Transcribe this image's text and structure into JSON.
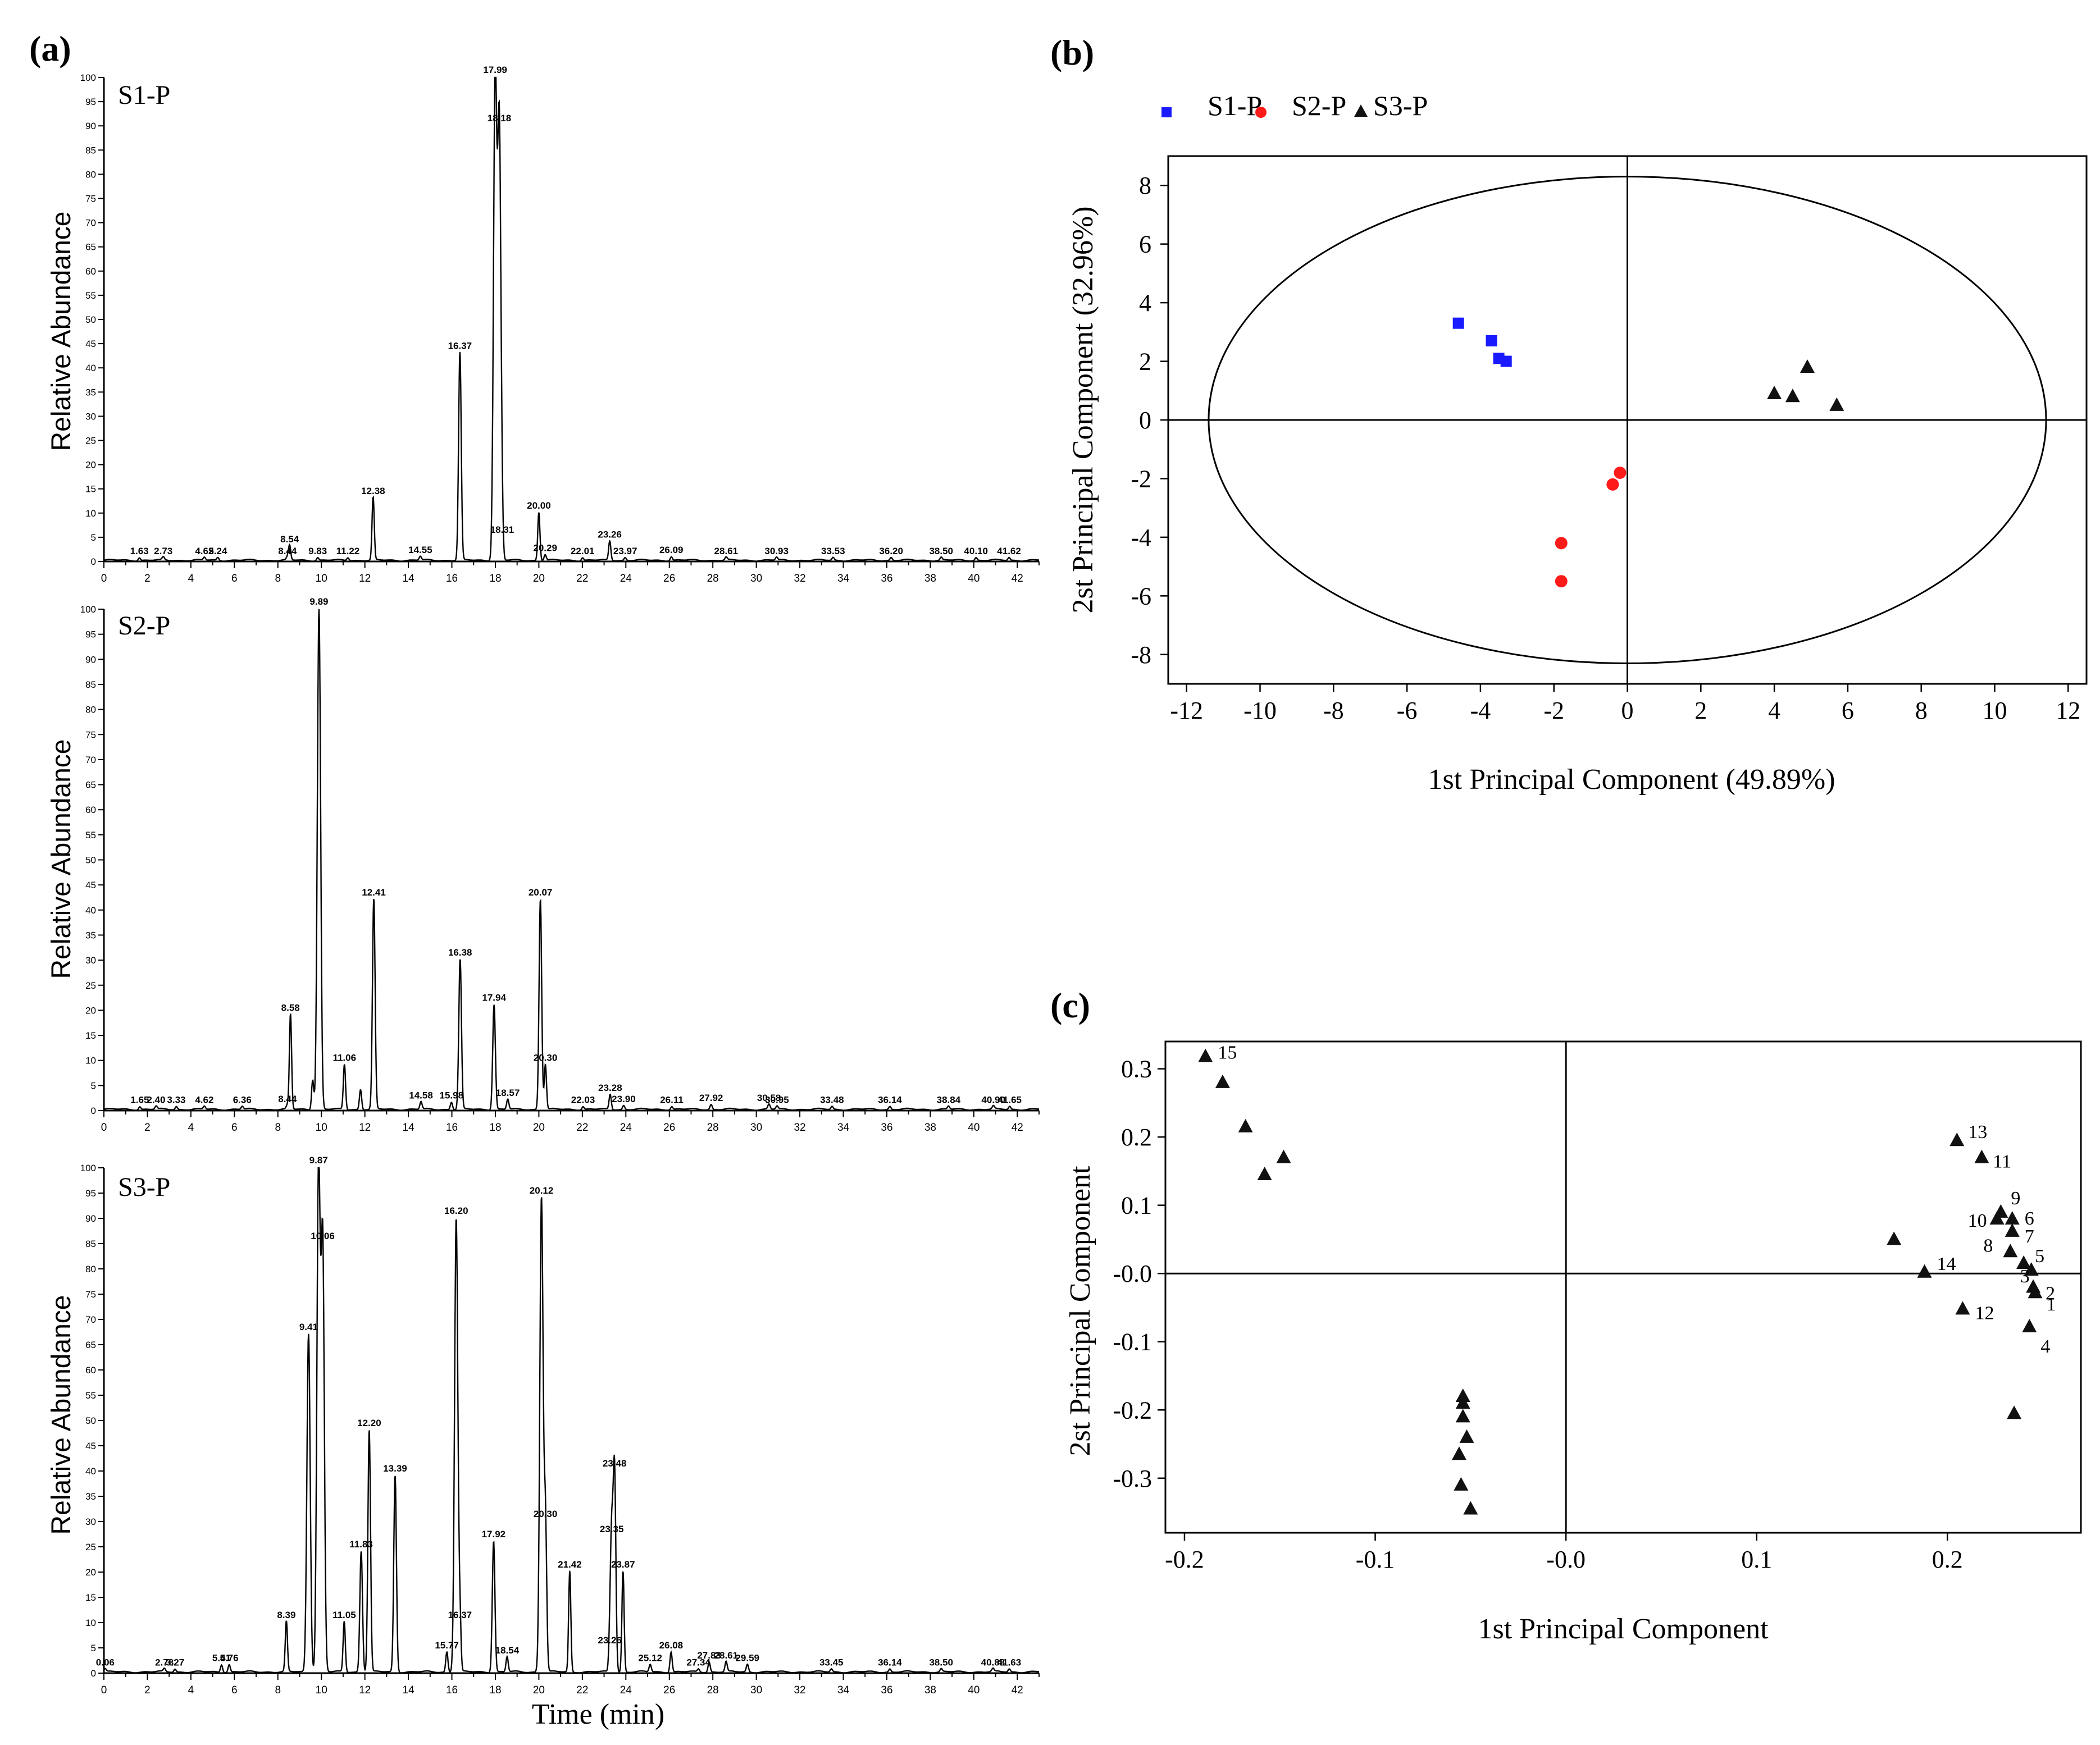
{
  "figure": {
    "panel_labels": [
      "(a)",
      "(b)",
      "(c)"
    ]
  },
  "chart_data": [
    {
      "id": "S1",
      "type": "line",
      "name": "S1-P",
      "ylabel": "Relative Abundance",
      "xlabel": "",
      "xlim": [
        0,
        43
      ],
      "ylim": [
        0,
        100
      ],
      "xticks": [
        0,
        2,
        4,
        6,
        8,
        10,
        12,
        14,
        16,
        18,
        20,
        22,
        24,
        26,
        28,
        30,
        32,
        34,
        36,
        38,
        40,
        42
      ],
      "yticks": [
        0,
        5,
        10,
        15,
        20,
        25,
        30,
        35,
        40,
        45,
        50,
        55,
        60,
        65,
        70,
        75,
        80,
        85,
        90,
        95,
        100
      ],
      "peaks": [
        {
          "rt": 1.63,
          "h": 0.6,
          "label": "1.63"
        },
        {
          "rt": 2.73,
          "h": 0.6,
          "label": "2.73"
        },
        {
          "rt": 4.62,
          "h": 0.6,
          "label": "4.62"
        },
        {
          "rt": 5.24,
          "h": 0.6,
          "label": "5.24"
        },
        {
          "rt": 8.44,
          "h": 0.6,
          "label": "8.44"
        },
        {
          "rt": 8.54,
          "h": 3,
          "label": "8.54"
        },
        {
          "rt": 9.83,
          "h": 0.6,
          "label": "9.83"
        },
        {
          "rt": 11.22,
          "h": 0.6,
          "label": "11.22"
        },
        {
          "rt": 12.38,
          "h": 13,
          "label": "12.38"
        },
        {
          "rt": 14.55,
          "h": 0.8,
          "label": "14.55"
        },
        {
          "rt": 16.37,
          "h": 43,
          "label": "16.37"
        },
        {
          "rt": 17.99,
          "h": 100,
          "label": "17.99"
        },
        {
          "rt": 18.18,
          "h": 90,
          "label": "18.18"
        },
        {
          "rt": 18.31,
          "h": 5,
          "label": "18.31"
        },
        {
          "rt": 20.0,
          "h": 10,
          "label": "20.00"
        },
        {
          "rt": 20.29,
          "h": 1.2,
          "label": "20.29"
        },
        {
          "rt": 22.01,
          "h": 0.6,
          "label": "22.01"
        },
        {
          "rt": 23.26,
          "h": 4,
          "label": "23.26"
        },
        {
          "rt": 23.97,
          "h": 0.6,
          "label": "23.97"
        },
        {
          "rt": 26.09,
          "h": 0.8,
          "label": "26.09"
        },
        {
          "rt": 28.61,
          "h": 0.6,
          "label": "28.61"
        },
        {
          "rt": 30.93,
          "h": 0.6,
          "label": "30.93"
        },
        {
          "rt": 33.53,
          "h": 0.6,
          "label": "33.53"
        },
        {
          "rt": 36.2,
          "h": 0.6,
          "label": "36.20"
        },
        {
          "rt": 38.5,
          "h": 0.6,
          "label": "38.50"
        },
        {
          "rt": 40.1,
          "h": 0.6,
          "label": "40.10"
        },
        {
          "rt": 41.62,
          "h": 0.6,
          "label": "41.62"
        }
      ]
    },
    {
      "id": "S2",
      "type": "line",
      "name": "S2-P",
      "ylabel": "Relative Abundance",
      "xlabel": "",
      "xlim": [
        0,
        43
      ],
      "ylim": [
        0,
        100
      ],
      "xticks": [
        0,
        2,
        4,
        6,
        8,
        10,
        12,
        14,
        16,
        18,
        20,
        22,
        24,
        26,
        28,
        30,
        32,
        34,
        36,
        38,
        40,
        42
      ],
      "yticks": [
        0,
        5,
        10,
        15,
        20,
        25,
        30,
        35,
        40,
        45,
        50,
        55,
        60,
        65,
        70,
        75,
        80,
        85,
        90,
        95,
        100
      ],
      "peaks": [
        {
          "rt": 1.65,
          "h": 0.6,
          "label": "1.65"
        },
        {
          "rt": 2.4,
          "h": 0.6,
          "label": "2.40"
        },
        {
          "rt": 3.33,
          "h": 0.6,
          "label": "3.33"
        },
        {
          "rt": 4.62,
          "h": 0.6,
          "label": "4.62"
        },
        {
          "rt": 6.36,
          "h": 0.6,
          "label": "6.36"
        },
        {
          "rt": 8.44,
          "h": 0.8,
          "label": "8.44"
        },
        {
          "rt": 8.58,
          "h": 19,
          "label": "8.58"
        },
        {
          "rt": 9.6,
          "h": 6,
          "label": ""
        },
        {
          "rt": 9.89,
          "h": 100,
          "label": "9.89"
        },
        {
          "rt": 11.06,
          "h": 9,
          "label": "11.06"
        },
        {
          "rt": 11.8,
          "h": 4,
          "label": ""
        },
        {
          "rt": 12.41,
          "h": 42,
          "label": "12.41"
        },
        {
          "rt": 14.58,
          "h": 1.5,
          "label": "14.58"
        },
        {
          "rt": 15.98,
          "h": 1.5,
          "label": "15.98"
        },
        {
          "rt": 16.38,
          "h": 30,
          "label": "16.38"
        },
        {
          "rt": 17.94,
          "h": 21,
          "label": "17.94"
        },
        {
          "rt": 18.57,
          "h": 2,
          "label": "18.57"
        },
        {
          "rt": 20.07,
          "h": 42,
          "label": "20.07"
        },
        {
          "rt": 20.3,
          "h": 9,
          "label": "20.30"
        },
        {
          "rt": 22.03,
          "h": 0.6,
          "label": "22.03"
        },
        {
          "rt": 23.28,
          "h": 3,
          "label": "23.28"
        },
        {
          "rt": 23.9,
          "h": 0.8,
          "label": "23.90"
        },
        {
          "rt": 26.11,
          "h": 0.6,
          "label": "26.11"
        },
        {
          "rt": 27.92,
          "h": 1,
          "label": "27.92"
        },
        {
          "rt": 30.58,
          "h": 1,
          "label": "30.58"
        },
        {
          "rt": 30.95,
          "h": 0.6,
          "label": "30.95"
        },
        {
          "rt": 33.48,
          "h": 0.6,
          "label": "33.48"
        },
        {
          "rt": 36.14,
          "h": 0.6,
          "label": "36.14"
        },
        {
          "rt": 38.84,
          "h": 0.6,
          "label": "38.84"
        },
        {
          "rt": 40.9,
          "h": 0.6,
          "label": "40.90"
        },
        {
          "rt": 41.65,
          "h": 0.6,
          "label": "41.65"
        }
      ]
    },
    {
      "id": "S3",
      "type": "line",
      "name": "S3-P",
      "ylabel": "Relative Abundance",
      "xlabel": "Time (min)",
      "xlim": [
        0,
        43
      ],
      "ylim": [
        0,
        100
      ],
      "xticks": [
        0,
        2,
        4,
        6,
        8,
        10,
        12,
        14,
        16,
        18,
        20,
        22,
        24,
        26,
        28,
        30,
        32,
        34,
        36,
        38,
        40,
        42
      ],
      "yticks": [
        0,
        5,
        10,
        15,
        20,
        25,
        30,
        35,
        40,
        45,
        50,
        55,
        60,
        65,
        70,
        75,
        80,
        85,
        90,
        95,
        100
      ],
      "peaks": [
        {
          "rt": 0.06,
          "h": 0.6,
          "label": "0.06"
        },
        {
          "rt": 2.78,
          "h": 0.6,
          "label": "2.78"
        },
        {
          "rt": 3.27,
          "h": 0.6,
          "label": "3.27"
        },
        {
          "rt": 5.41,
          "h": 1.5,
          "label": "5.41"
        },
        {
          "rt": 5.76,
          "h": 1.5,
          "label": "5.76"
        },
        {
          "rt": 8.39,
          "h": 10,
          "label": "8.39"
        },
        {
          "rt": 9.41,
          "h": 67,
          "label": "9.41"
        },
        {
          "rt": 9.87,
          "h": 100,
          "label": "9.87"
        },
        {
          "rt": 10.06,
          "h": 85,
          "label": "10.06"
        },
        {
          "rt": 11.05,
          "h": 10,
          "label": "11.05"
        },
        {
          "rt": 11.83,
          "h": 24,
          "label": "11.83"
        },
        {
          "rt": 12.2,
          "h": 48,
          "label": "12.20"
        },
        {
          "rt": 13.39,
          "h": 39,
          "label": "13.39"
        },
        {
          "rt": 15.77,
          "h": 4,
          "label": "15.77"
        },
        {
          "rt": 16.2,
          "h": 90,
          "label": "16.20"
        },
        {
          "rt": 16.37,
          "h": 10,
          "label": "16.37"
        },
        {
          "rt": 17.92,
          "h": 26,
          "label": "17.92"
        },
        {
          "rt": 18.54,
          "h": 3,
          "label": "18.54"
        },
        {
          "rt": 20.12,
          "h": 94,
          "label": "20.12"
        },
        {
          "rt": 20.3,
          "h": 30,
          "label": "20.30"
        },
        {
          "rt": 21.42,
          "h": 20,
          "label": "21.42"
        },
        {
          "rt": 23.35,
          "h": 27,
          "label": "23.35"
        },
        {
          "rt": 23.26,
          "h": 5,
          "label": "23.26"
        },
        {
          "rt": 23.48,
          "h": 40,
          "label": "23.48"
        },
        {
          "rt": 23.87,
          "h": 20,
          "label": "23.87"
        },
        {
          "rt": 25.12,
          "h": 1.5,
          "label": "25.12"
        },
        {
          "rt": 26.08,
          "h": 4,
          "label": "26.08"
        },
        {
          "rt": 27.34,
          "h": 0.6,
          "label": "27.34"
        },
        {
          "rt": 27.83,
          "h": 2,
          "label": "27.83"
        },
        {
          "rt": 28.61,
          "h": 2,
          "label": "28.61"
        },
        {
          "rt": 29.59,
          "h": 1.5,
          "label": "29.59"
        },
        {
          "rt": 33.45,
          "h": 0.6,
          "label": "33.45"
        },
        {
          "rt": 36.14,
          "h": 0.6,
          "label": "36.14"
        },
        {
          "rt": 38.5,
          "h": 0.6,
          "label": "38.50"
        },
        {
          "rt": 40.88,
          "h": 0.6,
          "label": "40.88"
        },
        {
          "rt": 41.63,
          "h": 0.6,
          "label": "41.63"
        }
      ]
    },
    {
      "id": "B",
      "type": "scatter",
      "xlabel": "1st Principal Component (49.89%)",
      "ylabel": "2st Principal Component (32.96%)",
      "xlim": [
        -12.5,
        12.5
      ],
      "ylim": [
        -9,
        9
      ],
      "xticks": [
        -12,
        -10,
        -8,
        -6,
        -4,
        -2,
        0,
        2,
        4,
        6,
        8,
        10,
        12
      ],
      "yticks": [
        -8,
        -6,
        -4,
        -2,
        0,
        2,
        4,
        6,
        8
      ],
      "ellipse": {
        "cx": 0,
        "cy": 0,
        "rx": 11.4,
        "ry": 8.3
      },
      "legend": [
        "S1-P",
        "S2-P",
        "S3-P"
      ],
      "series": [
        {
          "name": "S1-P",
          "marker": "square",
          "color": "#1a1aff",
          "points": [
            [
              -4.6,
              3.3
            ],
            [
              -3.7,
              2.7
            ],
            [
              -3.5,
              2.1
            ],
            [
              -3.3,
              2.0
            ]
          ]
        },
        {
          "name": "S2-P",
          "marker": "circle",
          "color": "#ff1a1a",
          "points": [
            [
              -0.2,
              -1.8
            ],
            [
              -0.4,
              -2.2
            ],
            [
              -1.8,
              -4.2
            ],
            [
              -1.8,
              -5.5
            ]
          ]
        },
        {
          "name": "S3-P",
          "marker": "triangle",
          "color": "#111111",
          "points": [
            [
              4.0,
              0.9
            ],
            [
              4.5,
              0.8
            ],
            [
              4.9,
              1.8
            ],
            [
              5.7,
              0.5
            ]
          ]
        }
      ]
    },
    {
      "id": "C",
      "type": "scatter",
      "xlabel": "1st Principal Component",
      "ylabel": "2st Principal Component",
      "xlim": [
        -0.21,
        0.27
      ],
      "ylim": [
        -0.38,
        0.34
      ],
      "xticks": [
        -0.2,
        -0.1,
        0.0,
        0.1,
        0.2
      ],
      "xtick_labels": [
        "-0.2",
        "-0.1",
        "-0.0",
        "0.1",
        "0.2"
      ],
      "yticks": [
        -0.3,
        -0.2,
        -0.1,
        0.0,
        0.1,
        0.2,
        0.3
      ],
      "ytick_labels": [
        "-0.3",
        "-0.2",
        "-0.1",
        "-0.0",
        "0.1",
        "0.2",
        "0.3"
      ],
      "series": [
        {
          "name": "loadings",
          "marker": "triangle",
          "color": "#111111",
          "points": [
            {
              "x": -0.189,
              "y": 0.318,
              "label": "15"
            },
            {
              "x": -0.18,
              "y": 0.28,
              "label": ""
            },
            {
              "x": -0.168,
              "y": 0.215,
              "label": ""
            },
            {
              "x": -0.158,
              "y": 0.145,
              "label": ""
            },
            {
              "x": -0.148,
              "y": 0.17,
              "label": ""
            },
            {
              "x": -0.054,
              "y": -0.18,
              "label": ""
            },
            {
              "x": -0.054,
              "y": -0.19,
              "label": ""
            },
            {
              "x": -0.054,
              "y": -0.21,
              "label": ""
            },
            {
              "x": -0.052,
              "y": -0.24,
              "label": ""
            },
            {
              "x": -0.056,
              "y": -0.265,
              "label": ""
            },
            {
              "x": -0.055,
              "y": -0.31,
              "label": ""
            },
            {
              "x": -0.05,
              "y": -0.345,
              "label": ""
            },
            {
              "x": 0.172,
              "y": 0.05,
              "label": ""
            },
            {
              "x": 0.188,
              "y": 0.002,
              "label": "14"
            },
            {
              "x": 0.205,
              "y": 0.195,
              "label": "13"
            },
            {
              "x": 0.218,
              "y": 0.17,
              "label": "11"
            },
            {
              "x": 0.228,
              "y": 0.09,
              "label": "9"
            },
            {
              "x": 0.226,
              "y": 0.08,
              "label": "10"
            },
            {
              "x": 0.234,
              "y": 0.08,
              "label": "6"
            },
            {
              "x": 0.234,
              "y": 0.062,
              "label": "7"
            },
            {
              "x": 0.233,
              "y": 0.032,
              "label": "8"
            },
            {
              "x": 0.24,
              "y": 0.015,
              "label": "5"
            },
            {
              "x": 0.244,
              "y": 0.005,
              "label": "3"
            },
            {
              "x": 0.245,
              "y": -0.02,
              "label": "2"
            },
            {
              "x": 0.246,
              "y": -0.028,
              "label": "1"
            },
            {
              "x": 0.208,
              "y": -0.052,
              "label": "12"
            },
            {
              "x": 0.243,
              "y": -0.078,
              "label": "4"
            },
            {
              "x": 0.235,
              "y": -0.205,
              "label": ""
            }
          ]
        }
      ]
    }
  ]
}
